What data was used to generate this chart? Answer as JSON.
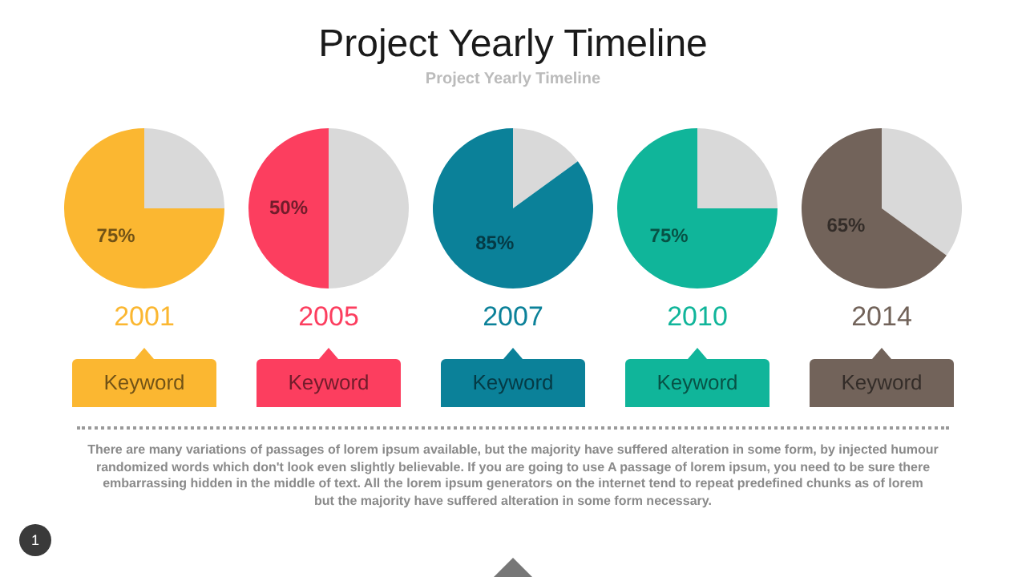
{
  "chart_data": [
    {
      "type": "other",
      "title": "Project Yearly Timeline",
      "subtitle": "Project Yearly Timeline",
      "annotations": [
        "There are many variations of passages of lorem ipsum available, but the majority have suffered alteration in some form, by injected humour randomized words which don't look even slightly believable. If you are going to use A passage of lorem ipsum, you need to be sure there embarrassing hidden in the middle of text. All the lorem ipsum generators on the internet tend to repeat predefined chunks as of lorem\nbut the majority have suffered alteration in some form  necessary.",
        "1"
      ]
    },
    {
      "type": "pie",
      "title": "2001",
      "categories": [
        null,
        null
      ],
      "values": [
        25,
        75
      ],
      "colors": [
        "#d9d9d9",
        "#fbb731"
      ],
      "value_labels": [
        null,
        "75%"
      ],
      "annotations": [
        "Keyword"
      ]
    },
    {
      "type": "pie",
      "title": "2005",
      "categories": [
        null,
        null
      ],
      "values": [
        50,
        50
      ],
      "colors": [
        "#d9d9d9",
        "#fc3e5f"
      ],
      "value_labels": [
        null,
        "50%"
      ],
      "annotations": [
        "Keyword"
      ]
    },
    {
      "type": "pie",
      "title": "2007",
      "categories": [
        null,
        null
      ],
      "values": [
        15,
        85
      ],
      "colors": [
        "#d9d9d9",
        "#0b8199"
      ],
      "value_labels": [
        null,
        "85%"
      ],
      "annotations": [
        "Keyword"
      ]
    },
    {
      "type": "pie",
      "title": "2010",
      "categories": [
        null,
        null
      ],
      "values": [
        25,
        75
      ],
      "colors": [
        "#d9d9d9",
        "#10b59a"
      ],
      "value_labels": [
        null,
        "75%"
      ],
      "annotations": [
        "Keyword"
      ]
    },
    {
      "type": "pie",
      "title": "2014",
      "categories": [
        null,
        null
      ],
      "values": [
        35,
        65
      ],
      "colors": [
        "#d9d9d9",
        "#72635a"
      ],
      "value_labels": [
        null,
        "65%"
      ],
      "annotations": [
        "Keyword"
      ]
    }
  ]
}
